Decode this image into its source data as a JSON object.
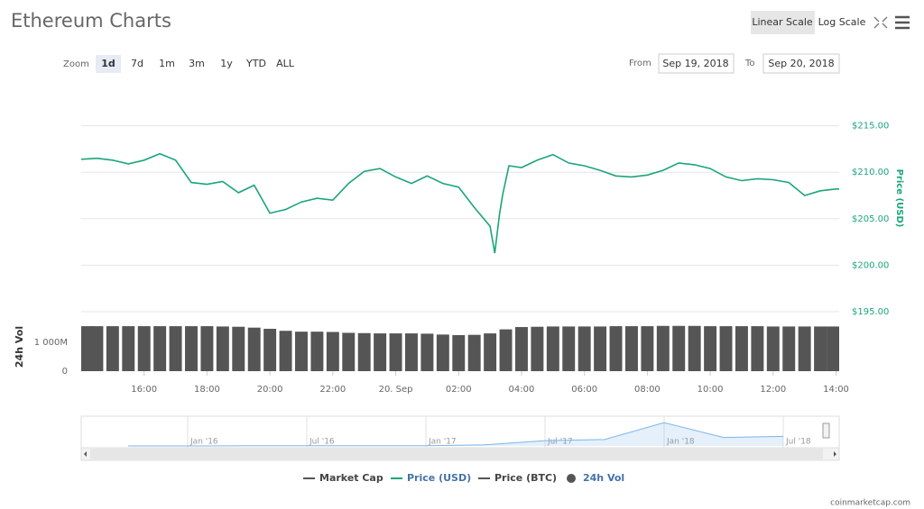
{
  "header": {
    "title": "Ethereum Charts",
    "scale_buttons": [
      "Linear Scale",
      "Log Scale"
    ],
    "active_scale": 0,
    "zoom_label": "Zoom",
    "zoom_buttons": [
      "1d",
      "7d",
      "1m",
      "3m",
      "1y",
      "YTD",
      "ALL"
    ],
    "active_zoom": 0,
    "from_label": "From",
    "from_date": "Sep 19, 2018",
    "to_label": "To",
    "to_date": "Sep 20, 2018"
  },
  "chart_data": [
    {
      "type": "line",
      "y_label": "Price (USD)",
      "x": [
        14,
        14.5,
        15,
        15.5,
        16,
        16.5,
        17,
        17.5,
        18,
        18.5,
        19,
        19.5,
        20,
        20.5,
        21,
        21.5,
        22,
        22.5,
        23,
        23.5,
        24,
        24.5,
        25,
        25.5,
        26,
        26.5,
        27,
        27.15,
        27.3,
        27.4,
        27.6,
        28,
        28.5,
        29,
        29.5,
        30,
        30.5,
        31,
        31.5,
        32,
        32.5,
        33,
        33.5,
        34,
        34.5,
        35,
        35.5,
        36,
        36.5,
        37,
        37.5,
        38,
        38.1
      ],
      "series": [
        {
          "name": "Price (USD)",
          "color": "#1aa57a",
          "values": [
            211.4,
            211.5,
            211.3,
            210.9,
            211.3,
            212.0,
            211.3,
            208.9,
            208.7,
            209.0,
            207.8,
            208.6,
            205.6,
            206.0,
            206.8,
            207.2,
            207.0,
            208.8,
            210.1,
            210.4,
            209.5,
            208.8,
            209.6,
            208.8,
            208.4,
            206.2,
            204.2,
            201.3,
            205.5,
            207.6,
            210.7,
            210.5,
            211.3,
            211.9,
            211.0,
            210.7,
            210.2,
            209.6,
            209.5,
            209.7,
            210.2,
            211.0,
            210.8,
            210.4,
            209.5,
            209.1,
            209.3,
            209.2,
            208.9,
            207.5,
            208.0,
            208.2,
            208.2
          ]
        }
      ],
      "xlim": [
        14,
        38.1
      ],
      "ylim": [
        195,
        220
      ],
      "yticks": [
        {
          "value": 195,
          "label": "$195.00"
        },
        {
          "value": 200,
          "label": "$200.00"
        },
        {
          "value": 205,
          "label": "$205.00"
        },
        {
          "value": 210,
          "label": "$210.00"
        },
        {
          "value": 215,
          "label": "$215.00"
        }
      ],
      "grid": true
    },
    {
      "type": "bar",
      "y_label": "24h Vol",
      "x": [
        14,
        14.5,
        15,
        15.5,
        16,
        16.5,
        17,
        17.5,
        18,
        18.5,
        19,
        19.5,
        20,
        20.5,
        21,
        21.5,
        22,
        22.5,
        23,
        23.5,
        24,
        24.5,
        25,
        25.5,
        26,
        26.5,
        27,
        27.5,
        28,
        28.5,
        29,
        29.5,
        30,
        30.5,
        31,
        31.5,
        32,
        32.5,
        33,
        33.5,
        34,
        34.5,
        35,
        35.5,
        36,
        36.5,
        37,
        37.5,
        38
      ],
      "series": [
        {
          "name": "24h Vol",
          "color": "#555555",
          "values": [
            1560000000,
            1560000000,
            1560000000,
            1560000000,
            1560000000,
            1560000000,
            1560000000,
            1560000000,
            1560000000,
            1550000000,
            1540000000,
            1510000000,
            1470000000,
            1400000000,
            1370000000,
            1370000000,
            1360000000,
            1330000000,
            1320000000,
            1310000000,
            1310000000,
            1310000000,
            1300000000,
            1270000000,
            1250000000,
            1260000000,
            1310000000,
            1450000000,
            1530000000,
            1540000000,
            1550000000,
            1550000000,
            1550000000,
            1550000000,
            1560000000,
            1560000000,
            1560000000,
            1570000000,
            1570000000,
            1570000000,
            1560000000,
            1560000000,
            1560000000,
            1560000000,
            1550000000,
            1550000000,
            1550000000,
            1550000000,
            1550000000
          ]
        }
      ],
      "xlim": [
        14,
        38.1
      ],
      "ylim": [
        0,
        1800000000
      ],
      "xticks": [
        {
          "value": 16,
          "label": "16:00"
        },
        {
          "value": 18,
          "label": "18:00"
        },
        {
          "value": 20,
          "label": "20:00"
        },
        {
          "value": 22,
          "label": "22:00"
        },
        {
          "value": 24,
          "label": "20. Sep"
        },
        {
          "value": 26,
          "label": "02:00"
        },
        {
          "value": 28,
          "label": "04:00"
        },
        {
          "value": 30,
          "label": "06:00"
        },
        {
          "value": 32,
          "label": "08:00"
        },
        {
          "value": 34,
          "label": "10:00"
        },
        {
          "value": 36,
          "label": "12:00"
        },
        {
          "value": 38,
          "label": "14:00"
        }
      ],
      "yticks": [
        0,
        {
          "value": 1000000000,
          "label": "1 000M"
        }
      ],
      "grid": false
    },
    {
      "type": "area",
      "color": "#7cb5ec",
      "categories": [
        null,
        "Jan '16",
        null,
        "Jul '16",
        null,
        "Jan '17",
        null,
        "Jul '17",
        null,
        "Jan '18",
        null,
        "Jul '18"
      ],
      "values": [
        0.5,
        1,
        9,
        12,
        12,
        8,
        50,
        250,
        300,
        1100,
        400,
        450
      ],
      "ylim": [
        0,
        1400
      ]
    }
  ],
  "hidden_series": [
    {
      "name": "Market Cap",
      "color": "#555555"
    },
    {
      "name": "Price (BTC)",
      "color": "#555555"
    }
  ],
  "credit": "coinmarketcap.com"
}
